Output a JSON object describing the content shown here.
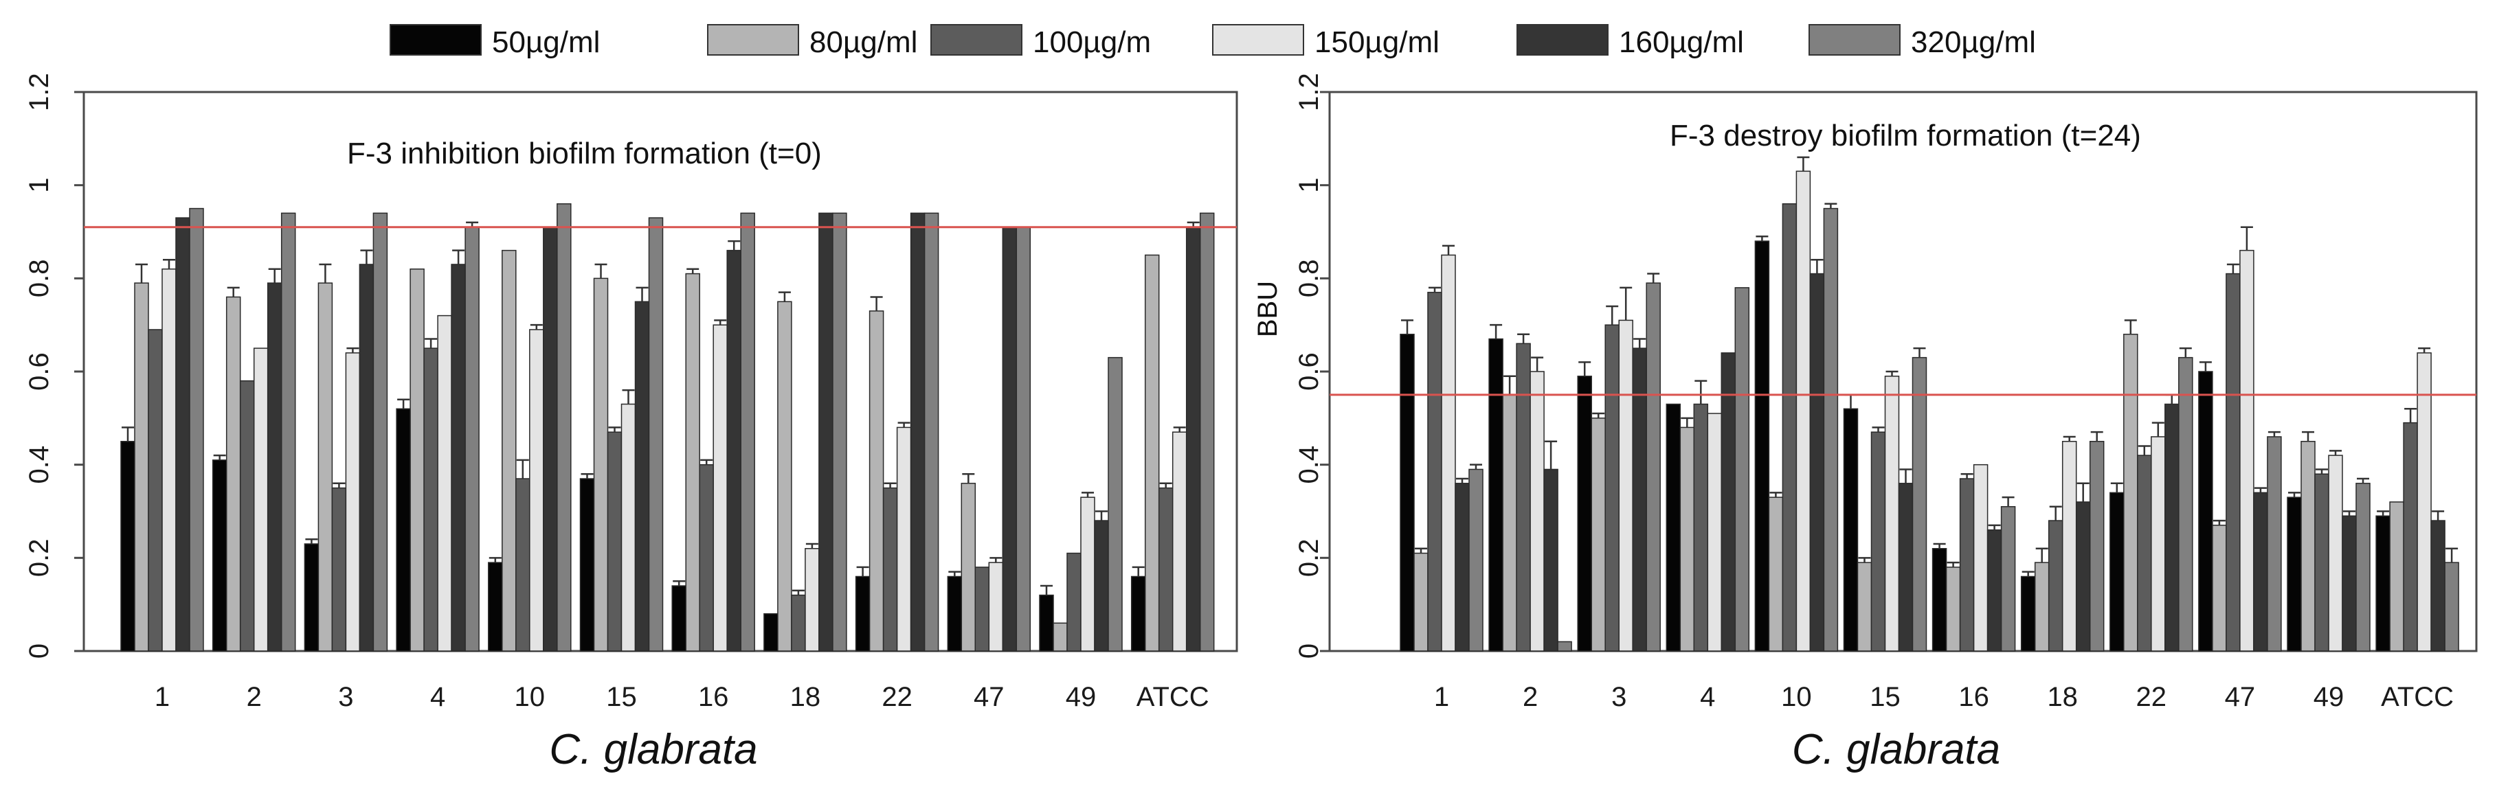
{
  "legend": [
    {
      "label": "50µg/ml",
      "color": "#050505"
    },
    {
      "label": "80µg/ml",
      "color": "#b4b4b4"
    },
    {
      "label": "100µg/m",
      "color": "#5c5c5c"
    },
    {
      "label": "150µg/ml",
      "color": "#e4e4e4"
    },
    {
      "label": "160µg/ml",
      "color": "#353535"
    },
    {
      "label": "320µg/ml",
      "color": "#808080"
    }
  ],
  "chart_data": [
    {
      "type": "bar",
      "title": "F-3 inhibition biofilm formation (t=0)",
      "xlabel": "C. glabrata",
      "ylabel": "",
      "ylim": [
        0,
        1.2
      ],
      "yticks": [
        "0",
        "0.2",
        "0.4",
        "0.6",
        "0.8",
        "1",
        "1.2"
      ],
      "reference_line": 0.91,
      "categories": [
        "1",
        "2",
        "3",
        "4",
        "10",
        "15",
        "16",
        "18",
        "22",
        "47",
        "49",
        "ATCC"
      ],
      "series": [
        {
          "name": "50µg/ml",
          "values": [
            0.45,
            0.41,
            0.23,
            0.52,
            0.19,
            0.37,
            0.14,
            0.08,
            0.16,
            0.16,
            0.12,
            0.16
          ],
          "errors": [
            0.03,
            0.01,
            0.01,
            0.02,
            0.01,
            0.01,
            0.01,
            0.0,
            0.02,
            0.01,
            0.02,
            0.02
          ]
        },
        {
          "name": "80µg/ml",
          "values": [
            0.79,
            0.76,
            0.79,
            0.82,
            0.86,
            0.8,
            0.81,
            0.75,
            0.73,
            0.36,
            0.06,
            0.85
          ],
          "errors": [
            0.04,
            0.02,
            0.04,
            0.0,
            0.0,
            0.03,
            0.01,
            0.02,
            0.03,
            0.02,
            0.0,
            0.0
          ]
        },
        {
          "name": "100µg/m",
          "values": [
            0.69,
            0.58,
            0.35,
            0.65,
            0.37,
            0.47,
            0.4,
            0.12,
            0.35,
            0.18,
            0.21,
            0.35
          ],
          "errors": [
            0.0,
            0.0,
            0.01,
            0.02,
            0.04,
            0.01,
            0.01,
            0.01,
            0.01,
            0.0,
            0.0,
            0.01
          ]
        },
        {
          "name": "150µg/ml",
          "values": [
            0.82,
            0.65,
            0.64,
            0.72,
            0.69,
            0.53,
            0.7,
            0.22,
            0.48,
            0.19,
            0.33,
            0.47
          ],
          "errors": [
            0.02,
            0.0,
            0.01,
            0.0,
            0.01,
            0.03,
            0.01,
            0.01,
            0.01,
            0.01,
            0.01,
            0.01
          ]
        },
        {
          "name": "160µg/ml",
          "values": [
            0.93,
            0.79,
            0.83,
            0.83,
            0.91,
            0.75,
            0.86,
            0.94,
            0.94,
            0.91,
            0.28,
            0.91
          ],
          "errors": [
            0.0,
            0.03,
            0.03,
            0.03,
            0.0,
            0.03,
            0.02,
            0.0,
            0.0,
            0.0,
            0.02,
            0.01
          ]
        },
        {
          "name": "320µg/ml",
          "values": [
            0.95,
            0.94,
            0.94,
            0.91,
            0.96,
            0.93,
            0.94,
            0.94,
            0.94,
            0.91,
            0.63,
            0.94
          ],
          "errors": [
            0.0,
            0.0,
            0.0,
            0.01,
            0.0,
            0.0,
            0.0,
            0.0,
            0.0,
            0.0,
            0.0,
            0.0
          ]
        }
      ]
    },
    {
      "type": "bar",
      "title": "F-3 destroy biofilm formation (t=24)",
      "xlabel": "C. glabrata",
      "ylabel": "BBU",
      "ylim": [
        0,
        1.2
      ],
      "yticks": [
        "0",
        "0.2",
        "0.4",
        "0.6",
        "0.8",
        "1",
        "1.2"
      ],
      "reference_line": 0.55,
      "categories": [
        "1",
        "2",
        "3",
        "4",
        "10",
        "15",
        "16",
        "18",
        "22",
        "47",
        "49",
        "ATCC"
      ],
      "series": [
        {
          "name": "50µg/ml",
          "values": [
            0.68,
            0.67,
            0.59,
            0.53,
            0.88,
            0.52,
            0.22,
            0.16,
            0.34,
            0.6,
            0.33,
            0.29
          ],
          "errors": [
            0.03,
            0.03,
            0.03,
            0.0,
            0.01,
            0.03,
            0.01,
            0.01,
            0.02,
            0.02,
            0.01,
            0.01
          ]
        },
        {
          "name": "80µg/ml",
          "values": [
            0.21,
            0.55,
            0.5,
            0.48,
            0.33,
            0.19,
            0.18,
            0.19,
            0.68,
            0.27,
            0.45,
            0.32
          ],
          "errors": [
            0.01,
            0.04,
            0.01,
            0.02,
            0.01,
            0.01,
            0.01,
            0.03,
            0.03,
            0.01,
            0.02,
            0.0
          ]
        },
        {
          "name": "100µg/m",
          "values": [
            0.77,
            0.66,
            0.7,
            0.53,
            0.96,
            0.47,
            0.37,
            0.28,
            0.42,
            0.81,
            0.38,
            0.49
          ],
          "errors": [
            0.01,
            0.02,
            0.04,
            0.05,
            0.0,
            0.01,
            0.01,
            0.03,
            0.02,
            0.02,
            0.01,
            0.03
          ]
        },
        {
          "name": "150µg/ml",
          "values": [
            0.85,
            0.6,
            0.71,
            0.51,
            1.03,
            0.59,
            0.4,
            0.45,
            0.46,
            0.86,
            0.42,
            0.64
          ],
          "errors": [
            0.02,
            0.03,
            0.07,
            0.0,
            0.03,
            0.01,
            0.0,
            0.01,
            0.03,
            0.05,
            0.01,
            0.01
          ]
        },
        {
          "name": "160µg/ml",
          "values": [
            0.36,
            0.39,
            0.65,
            0.64,
            0.81,
            0.36,
            0.26,
            0.32,
            0.53,
            0.34,
            0.29,
            0.28
          ],
          "errors": [
            0.01,
            0.06,
            0.02,
            0.0,
            0.03,
            0.03,
            0.01,
            0.04,
            0.02,
            0.01,
            0.01,
            0.02
          ]
        },
        {
          "name": "320µg/ml",
          "values": [
            0.39,
            0.02,
            0.79,
            0.78,
            0.95,
            0.63,
            0.31,
            0.45,
            0.63,
            0.46,
            0.36,
            0.19
          ],
          "errors": [
            0.01,
            0.0,
            0.02,
            0.0,
            0.01,
            0.02,
            0.02,
            0.02,
            0.02,
            0.01,
            0.01,
            0.03
          ]
        }
      ]
    }
  ]
}
